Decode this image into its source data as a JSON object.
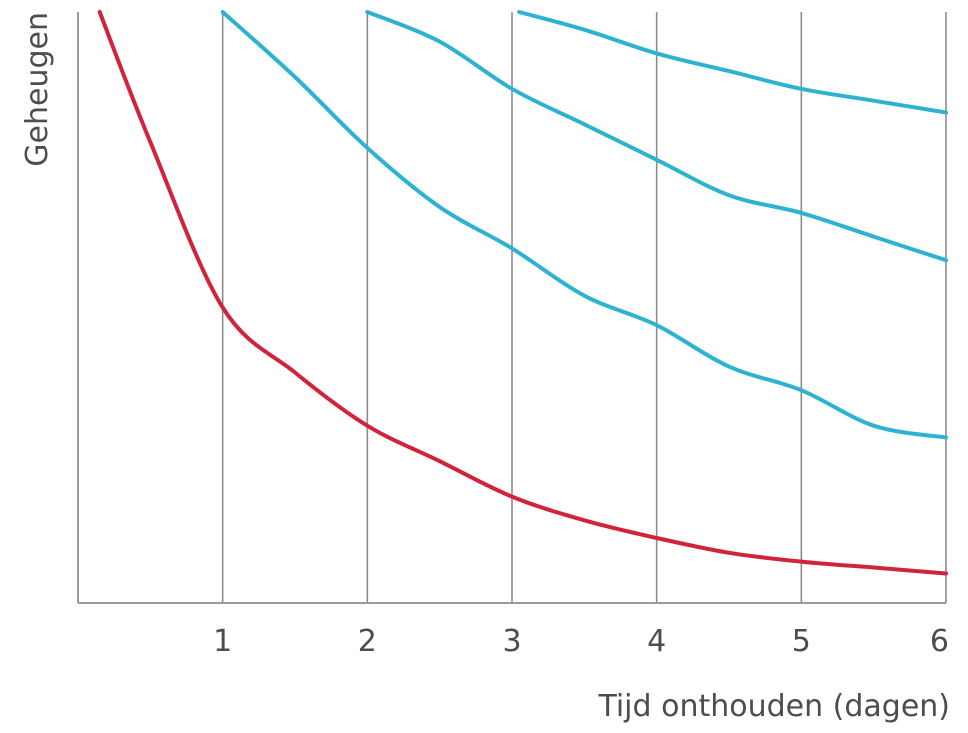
{
  "chart_data": {
    "type": "line",
    "title": "",
    "xlabel": "Tijd onthouden (dagen)",
    "ylabel": "Geheugen",
    "xlim": [
      0,
      6
    ],
    "ylim": [
      0,
      1
    ],
    "x_ticks": [
      "1",
      "2",
      "3",
      "4",
      "5",
      "6"
    ],
    "grid": "vertical lines at x = 1..6",
    "legend": "none",
    "series": [
      {
        "color": "#d2233c",
        "points": [
          [
            0.15,
            1.0
          ],
          [
            0.5,
            0.78
          ],
          [
            1.0,
            0.5
          ],
          [
            1.5,
            0.39
          ],
          [
            2.0,
            0.3
          ],
          [
            2.5,
            0.24
          ],
          [
            3.0,
            0.18
          ],
          [
            3.5,
            0.14
          ],
          [
            4.0,
            0.11
          ],
          [
            4.5,
            0.085
          ],
          [
            5.0,
            0.07
          ],
          [
            5.5,
            0.06
          ],
          [
            6.0,
            0.05
          ]
        ]
      },
      {
        "color": "#2db3d1",
        "points": [
          [
            1.0,
            1.0
          ],
          [
            1.5,
            0.89
          ],
          [
            2.0,
            0.77
          ],
          [
            2.5,
            0.67
          ],
          [
            3.0,
            0.6
          ],
          [
            3.5,
            0.52
          ],
          [
            4.0,
            0.47
          ],
          [
            4.5,
            0.4
          ],
          [
            5.0,
            0.36
          ],
          [
            5.5,
            0.3
          ],
          [
            6.0,
            0.28
          ]
        ]
      },
      {
        "color": "#2db3d1",
        "points": [
          [
            2.0,
            1.0
          ],
          [
            2.5,
            0.95
          ],
          [
            3.0,
            0.87
          ],
          [
            3.5,
            0.81
          ],
          [
            4.0,
            0.75
          ],
          [
            4.5,
            0.69
          ],
          [
            5.0,
            0.66
          ],
          [
            5.5,
            0.62
          ],
          [
            6.0,
            0.58
          ]
        ]
      },
      {
        "color": "#2db3d1",
        "points": [
          [
            3.05,
            1.0
          ],
          [
            3.5,
            0.97
          ],
          [
            4.0,
            0.93
          ],
          [
            4.5,
            0.9
          ],
          [
            5.0,
            0.87
          ],
          [
            5.5,
            0.85
          ],
          [
            6.0,
            0.83
          ]
        ]
      }
    ]
  }
}
